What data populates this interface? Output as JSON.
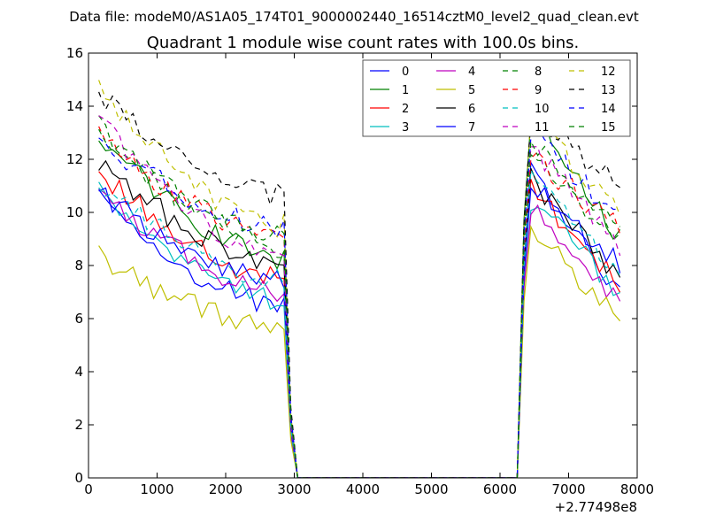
{
  "header": "Data file: modeM0/AS1A05_174T01_9000002440_16514cztM0_level2_quad_clean.evt",
  "chart_data": {
    "type": "line",
    "title": "Quadrant 1 module wise count rates with 100.0s bins.",
    "xlabel": "",
    "ylabel": "",
    "x_offset_label": "+2.77498e8",
    "xlim": [
      0,
      8000
    ],
    "ylim": [
      0,
      16
    ],
    "xticks": [
      "0",
      "1000",
      "2000",
      "3000",
      "4000",
      "5000",
      "6000",
      "7000",
      "8000"
    ],
    "yticks": [
      "0",
      "2",
      "4",
      "6",
      "8",
      "10",
      "12",
      "14",
      "16"
    ],
    "legend_position": "top-right",
    "legend_columns": 4,
    "gap": {
      "x_start": 3050,
      "x_end": 6250,
      "value": 0
    },
    "series": [
      {
        "name": "0",
        "color": "#0000ff",
        "dashed": false,
        "start": 10.5,
        "mid": 6.5,
        "post": 11.5,
        "end": 6.8
      },
      {
        "name": "1",
        "color": "#008000",
        "dashed": false,
        "start": 12.8,
        "mid": 8.3,
        "post": 13.9,
        "end": 9.0
      },
      {
        "name": "2",
        "color": "#ff0000",
        "dashed": false,
        "start": 11.5,
        "mid": 7.5,
        "post": 11.0,
        "end": 7.2
      },
      {
        "name": "3",
        "color": "#00bfbf",
        "dashed": false,
        "start": 10.7,
        "mid": 6.6,
        "post": 10.5,
        "end": 6.9
      },
      {
        "name": "4",
        "color": "#bf00bf",
        "dashed": false,
        "start": 10.8,
        "mid": 7.0,
        "post": 10.3,
        "end": 6.6
      },
      {
        "name": "5",
        "color": "#bfbf00",
        "dashed": false,
        "start": 8.3,
        "mid": 5.7,
        "post": 9.5,
        "end": 5.8
      },
      {
        "name": "6",
        "color": "#000000",
        "dashed": false,
        "start": 12.0,
        "mid": 8.0,
        "post": 11.3,
        "end": 7.5
      },
      {
        "name": "7",
        "color": "#0000ff",
        "dashed": false,
        "start": 10.7,
        "mid": 7.5,
        "post": 11.0,
        "end": 8.1
      },
      {
        "name": "8",
        "color": "#008000",
        "dashed": true,
        "start": 13.2,
        "mid": 8.7,
        "post": 12.3,
        "end": 8.9
      },
      {
        "name": "9",
        "color": "#ff0000",
        "dashed": true,
        "start": 13.0,
        "mid": 9.0,
        "post": 12.2,
        "end": 9.3
      },
      {
        "name": "10",
        "color": "#00bfbf",
        "dashed": true,
        "start": 11.0,
        "mid": 7.5,
        "post": 11.4,
        "end": 7.6
      },
      {
        "name": "11",
        "color": "#bf00bf",
        "dashed": true,
        "start": 13.5,
        "mid": 8.2,
        "post": 12.5,
        "end": 8.6
      },
      {
        "name": "12",
        "color": "#bfbf00",
        "dashed": true,
        "start": 14.6,
        "mid": 9.5,
        "post": 13.5,
        "end": 9.9
      },
      {
        "name": "13",
        "color": "#000000",
        "dashed": true,
        "start": 14.4,
        "mid": 10.6,
        "post": 13.7,
        "end": 11.0
      },
      {
        "name": "14",
        "color": "#0000ff",
        "dashed": true,
        "start": 12.7,
        "mid": 9.4,
        "post": 13.0,
        "end": 9.7
      },
      {
        "name": "15",
        "color": "#008000",
        "dashed": true,
        "start": 12.9,
        "mid": 9.2,
        "post": 12.8,
        "end": 9.1
      }
    ]
  }
}
